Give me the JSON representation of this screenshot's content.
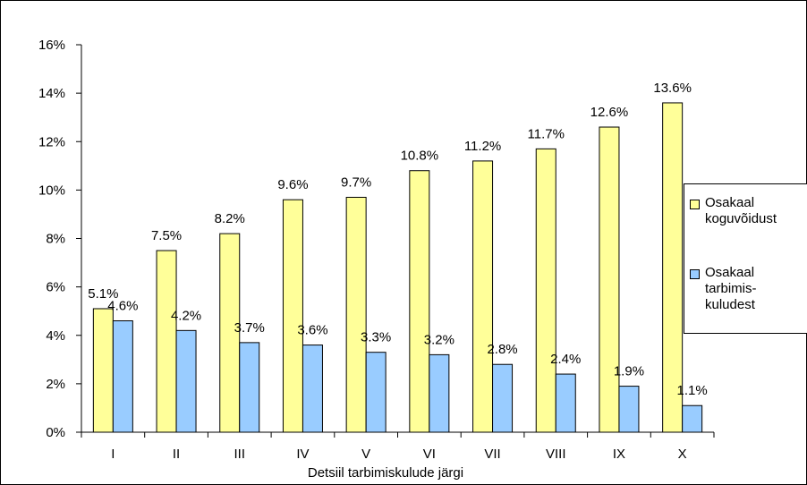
{
  "chart_data": {
    "type": "bar",
    "categories": [
      "I",
      "II",
      "III",
      "IV",
      "V",
      "VI",
      "VII",
      "VIII",
      "IX",
      "X"
    ],
    "series": [
      {
        "name": "Osakaal koguvõidust",
        "color": "#ffff99",
        "values": [
          5.1,
          7.5,
          8.2,
          9.6,
          9.7,
          10.8,
          11.2,
          11.7,
          12.6,
          13.6
        ],
        "labels": [
          "5.1%",
          "7.5%",
          "8.2%",
          "9.6%",
          "9.7%",
          "10.8%",
          "11.2%",
          "11.7%",
          "12.6%",
          "13.6%"
        ]
      },
      {
        "name": "Osakaal tarbimis-kuludest",
        "color": "#99ccff",
        "values": [
          4.6,
          4.2,
          3.7,
          3.6,
          3.3,
          3.2,
          2.8,
          2.4,
          1.9,
          1.1
        ],
        "labels": [
          "4.6%",
          "4.2%",
          "3.7%",
          "3.6%",
          "3.3%",
          "3.2%",
          "2.8%",
          "2.4%",
          "1.9%",
          "1.1%"
        ]
      }
    ],
    "xlabel": "Detsiil tarbimiskulude järgi",
    "ylabel": "",
    "ylim": [
      0,
      16
    ],
    "y_ticks": [
      0,
      2,
      4,
      6,
      8,
      10,
      12,
      14,
      16
    ],
    "y_tick_labels": [
      "0%",
      "2%",
      "4%",
      "6%",
      "8%",
      "10%",
      "12%",
      "14%",
      "16%"
    ],
    "grid": false,
    "legend_position": "right",
    "legend": {
      "item1": "Osakaal\nkoguvõidust",
      "item2": "Osakaal\ntarbimis-\nkuludest"
    }
  }
}
